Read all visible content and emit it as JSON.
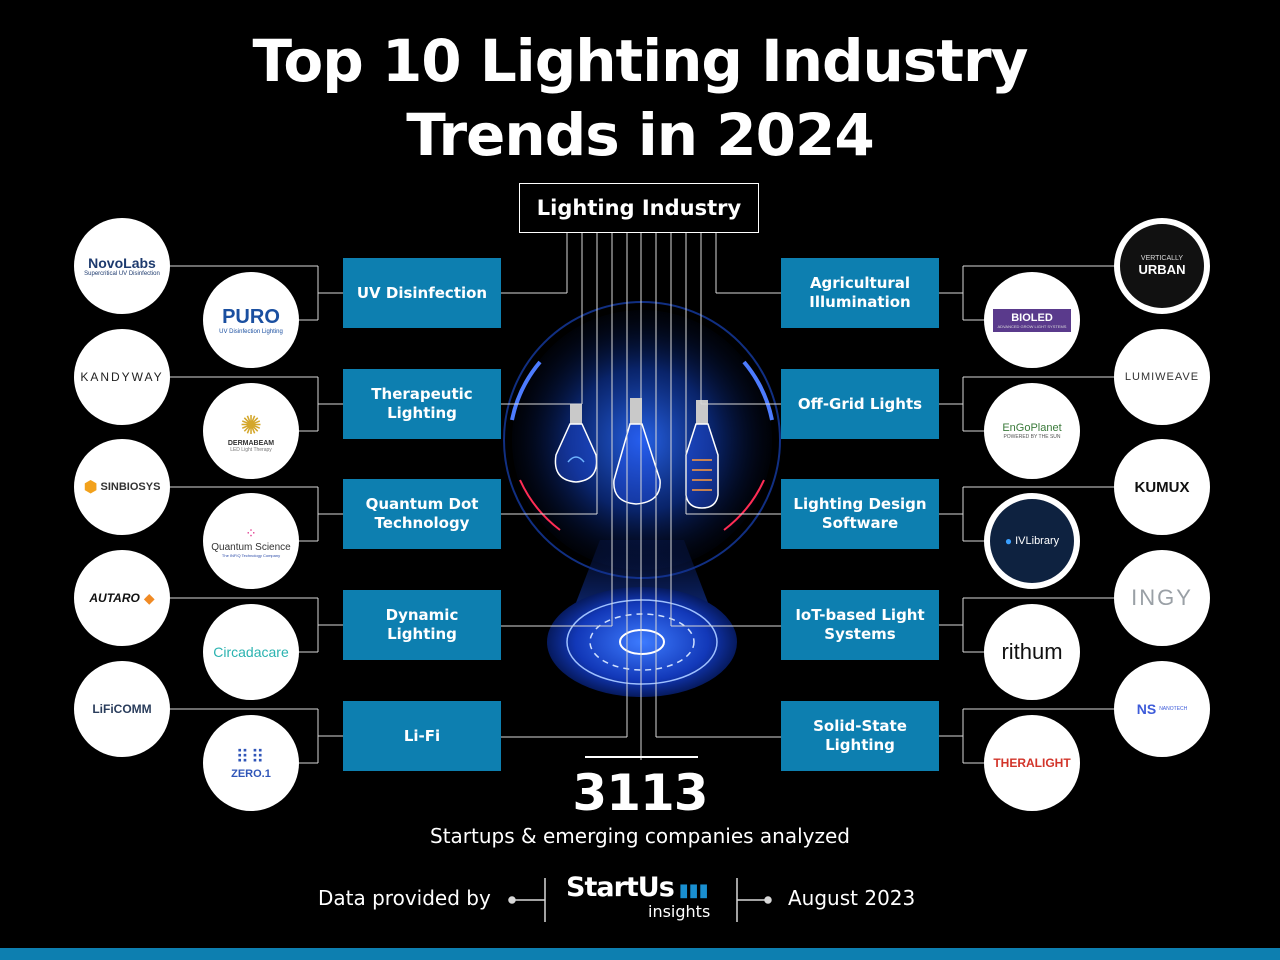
{
  "title_line1": "Top 10 Lighting Industry",
  "title_line2": "Trends in 2024",
  "root": "Lighting Industry",
  "trends_left": [
    {
      "label": "UV Disinfection",
      "logos": [
        "NovoLabs",
        "PURO"
      ],
      "taglines": [
        "Supercritical UV Disinfection",
        "UV Disinfection Lighting"
      ]
    },
    {
      "label": "Therapeutic Lighting",
      "logos": [
        "KANDYWAY",
        "DERMABEAM"
      ],
      "taglines": [
        "",
        "LED Light Therapy"
      ]
    },
    {
      "label": "Quantum Dot Technology",
      "logos": [
        "SINBIOSYS",
        "Quantum Science"
      ],
      "taglines": [
        "",
        "The INFIQ Technology Company"
      ]
    },
    {
      "label": "Dynamic Lighting",
      "logos": [
        "AUTARO",
        "Circadacare"
      ],
      "taglines": [
        "",
        ""
      ]
    },
    {
      "label": "Li-Fi",
      "logos": [
        "LiFiCOMM",
        "ZERO.1"
      ],
      "taglines": [
        "",
        ""
      ]
    }
  ],
  "trends_right": [
    {
      "label": "Agricultural Illumination",
      "logos": [
        "URBAN",
        "BIOLED"
      ],
      "taglines": [
        "VERTICALLY",
        "ADVANCED GROW LIGHT SYSTEMS"
      ]
    },
    {
      "label": "Off-Grid Lights",
      "logos": [
        "LUMIWEAVE",
        "EnGoPlanet"
      ],
      "taglines": [
        "",
        "POWERED BY THE SUN"
      ]
    },
    {
      "label": "Lighting Design Software",
      "logos": [
        "KUMUX",
        "IVLibrary"
      ],
      "taglines": [
        "",
        ""
      ]
    },
    {
      "label": "IoT-based Light Systems",
      "logos": [
        "INGY",
        "rithum"
      ],
      "taglines": [
        "",
        ""
      ]
    },
    {
      "label": "Solid-State Lighting",
      "logos": [
        "NS",
        "THERALIGHT"
      ],
      "taglines": [
        "NANOTECH",
        ""
      ]
    }
  ],
  "stat": {
    "value": "3113",
    "label": "Startups & emerging companies analyzed"
  },
  "footer": {
    "provided_by": "Data provided by",
    "brand": "StartUs",
    "brand_sub": "insights",
    "date": "August 2023"
  },
  "colors": {
    "accent": "#0d7fb0",
    "background": "#000000",
    "glow": "#1e6bff"
  }
}
